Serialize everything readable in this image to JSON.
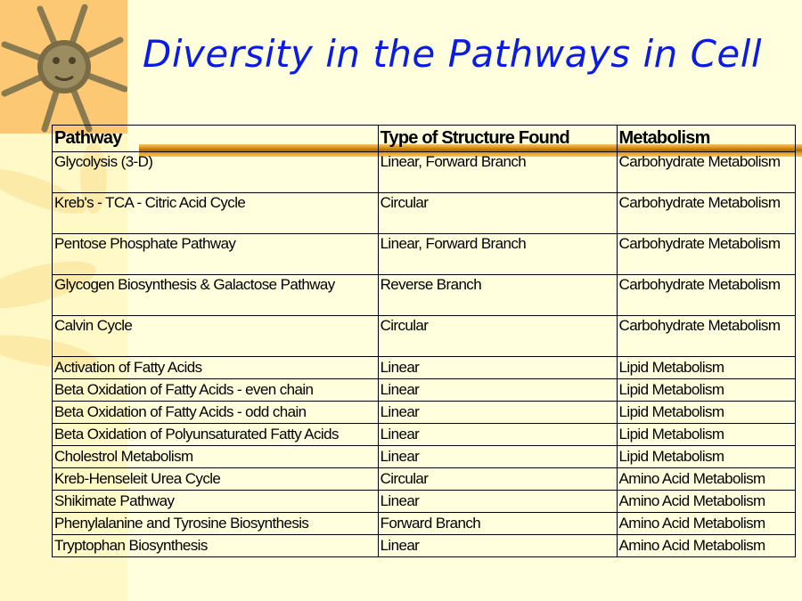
{
  "title": "Diversity in the Pathways in Cell",
  "logo": "sun-face-icon",
  "colors": {
    "title": "#0B1BE6",
    "background": "#FFFFDE",
    "accent_bar": "#D98A00"
  },
  "table": {
    "headers": [
      "Pathway",
      "Type of Structure Found",
      "Metabolism"
    ],
    "rows": [
      [
        "Glycolysis (3-D)",
        "Linear, Forward Branch",
        "Carbohydrate Metabolism"
      ],
      [
        "Kreb's - TCA - Citric Acid Cycle",
        "Circular",
        "Carbohydrate Metabolism"
      ],
      [
        "Pentose Phosphate Pathway",
        "Linear, Forward Branch",
        "Carbohydrate Metabolism"
      ],
      [
        "Glycogen Biosynthesis & Galactose Pathway",
        "Reverse Branch",
        "Carbohydrate Metabolism"
      ],
      [
        "Calvin Cycle",
        "Circular",
        "Carbohydrate Metabolism"
      ],
      [
        "Activation of Fatty Acids",
        "Linear",
        "Lipid Metabolism"
      ],
      [
        "Beta Oxidation of Fatty Acids - even chain",
        "Linear",
        "Lipid Metabolism"
      ],
      [
        "Beta Oxidation of Fatty Acids - odd chain",
        "Linear",
        "Lipid Metabolism"
      ],
      [
        "Beta Oxidation of Polyunsaturated Fatty Acids",
        "Linear",
        "Lipid Metabolism"
      ],
      [
        "Cholestrol Metabolism",
        "Linear",
        "Lipid Metabolism"
      ],
      [
        "Kreb-Henseleit Urea Cycle",
        "Circular",
        "Amino Acid Metabolism"
      ],
      [
        "Shikimate Pathway",
        "Linear",
        "Amino Acid Metabolism"
      ],
      [
        "Phenylalanine and Tyrosine Biosynthesis",
        "Forward Branch",
        "Amino Acid Metabolism"
      ],
      [
        "Tryptophan Biosynthesis",
        "Linear",
        "Amino Acid Metabolism"
      ]
    ]
  }
}
